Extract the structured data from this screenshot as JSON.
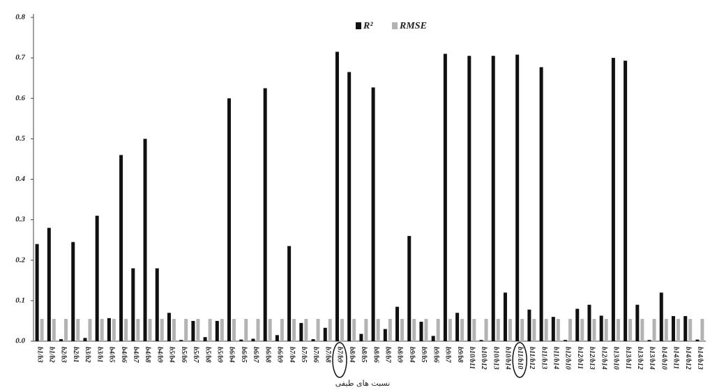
{
  "chart_data": {
    "type": "bar",
    "x_label": "نسبت های طیفی",
    "categories": [
      "b1/b3",
      "b1/b2",
      "b2/b3",
      "b2/b1",
      "b3/b2",
      "b3/b1",
      "b4/b5",
      "b4/b6",
      "b4/b7",
      "b4/b8",
      "b4/b9",
      "b5/b4",
      "b5/b6",
      "b5/b7",
      "b5/b8",
      "b5/b9",
      "b6/b4",
      "b6/b5",
      "b6/b7",
      "b6/b8",
      "b6/b9",
      "b7/b4",
      "b7/b5",
      "b7/b6",
      "b7/b8",
      "b7/b9",
      "b8/b4",
      "b8/b5",
      "b8/b6",
      "b8/b7",
      "b8/b9",
      "b9/b4",
      "b9/b5",
      "b9/b6",
      "b9/b7",
      "b9/b8",
      "b10/b11",
      "b10/b12",
      "b10/b13",
      "b10/b14",
      "b11/b10",
      "b11/b12",
      "b11/b13",
      "b11/b14",
      "b12/b10",
      "b12/b11",
      "b12/b13",
      "b12/b14",
      "b13/b10",
      "b13/b11",
      "b13/b12",
      "b13/b14",
      "b14/b10",
      "b14/b11",
      "b14/b12",
      "b14/b13"
    ],
    "series": [
      {
        "name": "R²",
        "color": "#111111",
        "values": [
          0.24,
          0.28,
          0.005,
          0.245,
          0.008,
          0.31,
          0.057,
          0.46,
          0.18,
          0.5,
          0.18,
          0.07,
          0.003,
          0.05,
          0.01,
          0.05,
          0.6,
          0.004,
          0.006,
          0.625,
          0.015,
          0.235,
          0.045,
          0.005,
          0.033,
          0.715,
          0.665,
          0.018,
          0.627,
          0.03,
          0.085,
          0.26,
          0.048,
          0.013,
          0.71,
          0.07,
          0.705,
          0.003,
          0.705,
          0.12,
          0.708,
          0.078,
          0.677,
          0.06,
          0.003,
          0.08,
          0.09,
          0.063,
          0.7,
          0.693,
          0.09,
          0.003,
          0.12,
          0.062,
          0.062,
          0.004
        ]
      },
      {
        "name": "RMSE",
        "color": "#b3b3b3",
        "values": [
          0.055,
          0.055,
          0.055,
          0.055,
          0.055,
          0.055,
          0.055,
          0.055,
          0.055,
          0.055,
          0.055,
          0.055,
          0.055,
          0.055,
          0.055,
          0.055,
          0.055,
          0.055,
          0.055,
          0.055,
          0.055,
          0.055,
          0.055,
          0.055,
          0.055,
          0.055,
          0.055,
          0.055,
          0.055,
          0.055,
          0.055,
          0.055,
          0.055,
          0.055,
          0.055,
          0.055,
          0.055,
          0.055,
          0.055,
          0.055,
          0.055,
          0.055,
          0.055,
          0.055,
          0.055,
          0.055,
          0.055,
          0.055,
          0.055,
          0.055,
          0.055,
          0.055,
          0.055,
          0.055,
          0.055,
          0.055
        ]
      }
    ],
    "highlighted": [
      "b7/b9",
      "b11/b10"
    ],
    "ylim": [
      0,
      0.8
    ],
    "yticks": [
      {
        "value": 0,
        "label": "0.0"
      },
      0.1,
      0.2,
      0.3,
      0.4,
      0.5,
      0.6,
      0.7,
      0.8
    ],
    "grid": false
  }
}
